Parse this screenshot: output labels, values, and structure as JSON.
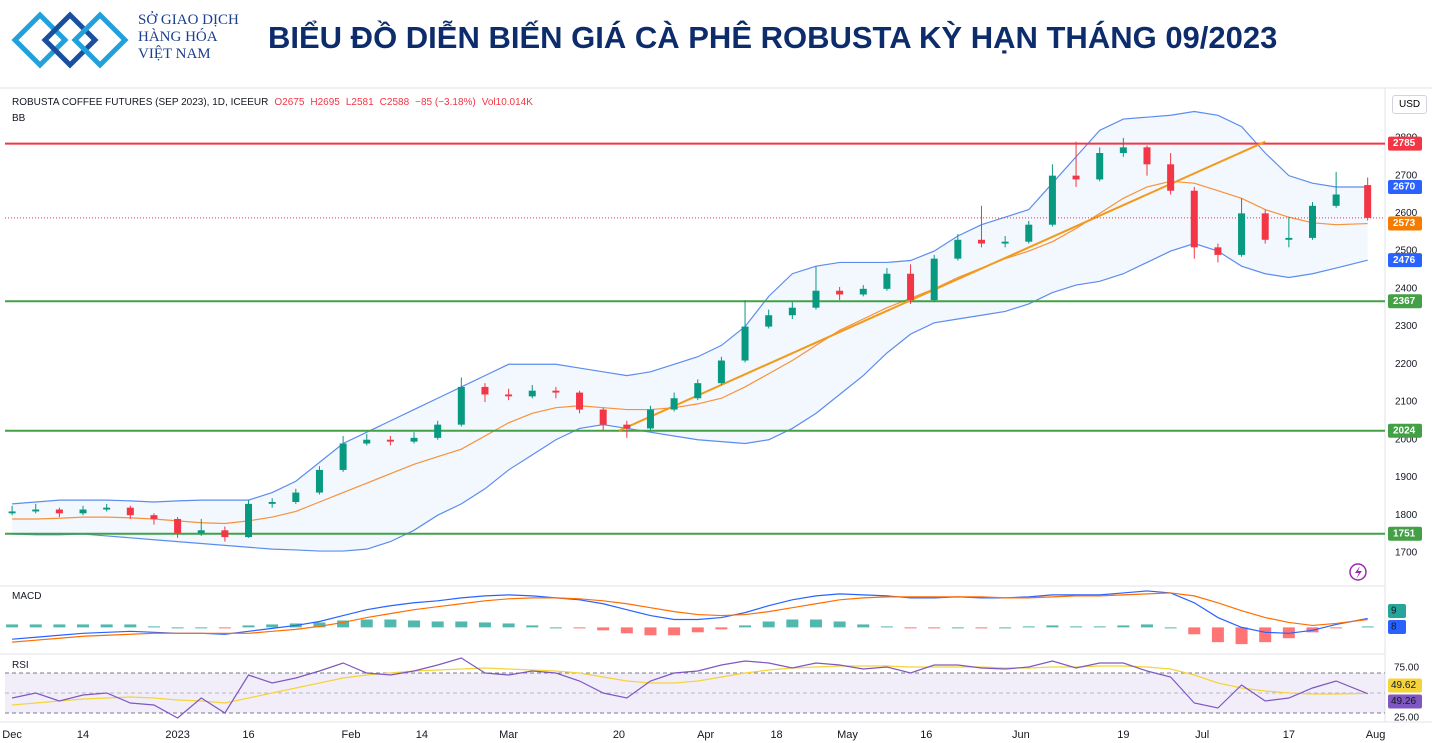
{
  "header": {
    "logo_lines": [
      "SỞ GIAO DỊCH",
      "HÀNG HÓA",
      "VIỆT NAM"
    ],
    "title": "BIỂU ĐỒ DIỄN BIẾN GIÁ CÀ PHÊ ROBUSTA KỲ HẠN THÁNG 09/2023"
  },
  "chart_data": [
    {
      "type": "candlestick",
      "info": [
        "ROBUSTA COFFEE FUTURES (SEP 2023), 1D, ICEEUR",
        "O2675",
        "H2695",
        "L2581",
        "C2588",
        "−85 (−3.18%)",
        "Vol10.014K"
      ],
      "indicator": "BB",
      "currency": "USD",
      "xlim": [
        -0.9,
        174.2
      ],
      "xticks": [
        {
          "value": 0,
          "label": "Dec"
        },
        {
          "value": 9,
          "label": "14"
        },
        {
          "value": 21,
          "label": "2023"
        },
        {
          "value": 30,
          "label": "16"
        },
        {
          "value": 43,
          "label": "Feb"
        },
        {
          "value": 52,
          "label": "14"
        },
        {
          "value": 63,
          "label": "Mar"
        },
        {
          "value": 77,
          "label": "20"
        },
        {
          "value": 88,
          "label": "Apr"
        },
        {
          "value": 97,
          "label": "18"
        },
        {
          "value": 106,
          "label": "May"
        },
        {
          "value": 116,
          "label": "16"
        },
        {
          "value": 128,
          "label": "Jun"
        },
        {
          "value": 141,
          "label": "19"
        },
        {
          "value": 151,
          "label": "Jul"
        },
        {
          "value": 162,
          "label": "17"
        },
        {
          "value": 173,
          "label": "Aug"
        }
      ],
      "ylim": [
        1615,
        2927
      ],
      "yticks": [
        1700,
        1800,
        1900,
        2000,
        2100,
        2200,
        2300,
        2400,
        2500,
        2600,
        2700,
        2800
      ],
      "x": [
        0,
        3,
        6,
        9,
        12,
        15,
        18,
        21,
        24,
        27,
        30,
        33,
        36,
        39,
        42,
        45,
        48,
        51,
        54,
        57,
        60,
        63,
        66,
        69,
        72,
        75,
        78,
        81,
        84,
        87,
        90,
        93,
        96,
        99,
        102,
        105,
        108,
        111,
        114,
        117,
        120,
        123,
        126,
        129,
        132,
        135,
        138,
        141,
        144,
        147,
        150,
        153,
        156,
        159,
        162,
        165,
        168,
        172
      ],
      "open": [
        1805,
        1810,
        1815,
        1805,
        1815,
        1820,
        1800,
        1790,
        1752,
        1760,
        1742,
        1830,
        1835,
        1860,
        1920,
        1990,
        2000,
        1995,
        2005,
        2040,
        2140,
        2120,
        2115,
        2130,
        2125,
        2080,
        2040,
        2030,
        2080,
        2110,
        2150,
        2210,
        2300,
        2330,
        2350,
        2395,
        2385,
        2400,
        2440,
        2370,
        2480,
        2530,
        2520,
        2525,
        2570,
        2700,
        2690,
        2760,
        2775,
        2730,
        2660,
        2510,
        2490,
        2600,
        2530,
        2535,
        2620,
        2675
      ],
      "high": [
        1825,
        1830,
        1820,
        1825,
        1830,
        1825,
        1805,
        1795,
        1790,
        1770,
        1840,
        1845,
        1870,
        1930,
        2010,
        2015,
        2010,
        2020,
        2050,
        2165,
        2150,
        2135,
        2145,
        2140,
        2130,
        2085,
        2050,
        2090,
        2125,
        2160,
        2220,
        2370,
        2345,
        2365,
        2460,
        2405,
        2410,
        2455,
        2465,
        2490,
        2545,
        2620,
        2540,
        2580,
        2730,
        2790,
        2775,
        2800,
        2780,
        2760,
        2670,
        2520,
        2640,
        2610,
        2590,
        2630,
        2710,
        2695
      ],
      "low": [
        1800,
        1805,
        1795,
        1800,
        1810,
        1790,
        1775,
        1740,
        1745,
        1730,
        1740,
        1820,
        1830,
        1855,
        1915,
        1985,
        1985,
        1990,
        2000,
        2035,
        2100,
        2105,
        2110,
        2110,
        2070,
        2025,
        2005,
        2025,
        2075,
        2105,
        2145,
        2205,
        2295,
        2320,
        2345,
        2370,
        2380,
        2395,
        2360,
        2365,
        2475,
        2510,
        2510,
        2520,
        2565,
        2670,
        2685,
        2750,
        2700,
        2650,
        2480,
        2470,
        2485,
        2520,
        2510,
        2530,
        2615,
        2581
      ],
      "close": [
        1810,
        1815,
        1805,
        1815,
        1820,
        1800,
        1790,
        1752,
        1760,
        1742,
        1830,
        1835,
        1860,
        1920,
        1990,
        2000,
        1995,
        2005,
        2040,
        2140,
        2120,
        2115,
        2130,
        2125,
        2080,
        2040,
        2030,
        2080,
        2110,
        2150,
        2210,
        2300,
        2330,
        2350,
        2395,
        2385,
        2400,
        2440,
        2370,
        2480,
        2530,
        2520,
        2525,
        2570,
        2700,
        2690,
        2760,
        2775,
        2730,
        2660,
        2510,
        2490,
        2600,
        2530,
        2535,
        2620,
        2650,
        2588
      ],
      "up_color": "#089981",
      "down_color": "#f23645",
      "bb_upper": [
        1830,
        1835,
        1840,
        1840,
        1840,
        1838,
        1835,
        1838,
        1840,
        1840,
        1840,
        1860,
        1890,
        1940,
        1990,
        2020,
        2050,
        2080,
        2110,
        2140,
        2170,
        2200,
        2200,
        2200,
        2190,
        2180,
        2170,
        2180,
        2200,
        2220,
        2250,
        2300,
        2380,
        2440,
        2460,
        2470,
        2470,
        2470,
        2475,
        2500,
        2540,
        2570,
        2590,
        2610,
        2680,
        2750,
        2820,
        2850,
        2855,
        2860,
        2870,
        2860,
        2830,
        2760,
        2700,
        2680,
        2670,
        2670
      ],
      "bb_middle": [
        1790,
        1790,
        1792,
        1795,
        1795,
        1793,
        1790,
        1785,
        1780,
        1778,
        1785,
        1795,
        1810,
        1835,
        1860,
        1885,
        1910,
        1935,
        1955,
        1975,
        2010,
        2045,
        2070,
        2085,
        2090,
        2085,
        2080,
        2080,
        2085,
        2095,
        2110,
        2140,
        2175,
        2210,
        2250,
        2290,
        2320,
        2350,
        2375,
        2400,
        2430,
        2455,
        2480,
        2500,
        2525,
        2560,
        2600,
        2640,
        2670,
        2685,
        2680,
        2660,
        2640,
        2610,
        2590,
        2575,
        2570,
        2573
      ],
      "bb_lower": [
        1750,
        1748,
        1748,
        1750,
        1745,
        1740,
        1735,
        1730,
        1725,
        1720,
        1715,
        1710,
        1708,
        1705,
        1705,
        1710,
        1730,
        1760,
        1800,
        1830,
        1870,
        1920,
        1960,
        2000,
        2030,
        2040,
        2030,
        2020,
        2010,
        2000,
        1995,
        1990,
        2000,
        2030,
        2070,
        2120,
        2170,
        2230,
        2280,
        2310,
        2320,
        2330,
        2340,
        2360,
        2390,
        2410,
        2420,
        2440,
        2470,
        2500,
        2520,
        2500,
        2460,
        2440,
        2430,
        2440,
        2455,
        2476
      ],
      "bb_band_color": "#5b8def",
      "bb_middle_color": "#f7923a",
      "levels": [
        {
          "value": 2785,
          "color": "#f23645"
        },
        {
          "value": 2367,
          "color": "#43a047"
        },
        {
          "value": 2024,
          "color": "#43a047"
        },
        {
          "value": 1751,
          "color": "#43a047"
        }
      ],
      "trendline": {
        "x": [
          77,
          159
        ],
        "y": [
          2024,
          2790
        ],
        "color": "#f29a1a"
      },
      "price_labels": [
        {
          "value": 2785,
          "color": "#f23645"
        },
        {
          "value": 2670,
          "color": "#2962ff"
        },
        {
          "value": 2573,
          "color": "#f57c00"
        },
        {
          "value": 2476,
          "color": "#2962ff"
        },
        {
          "value": 2367,
          "color": "#43a047"
        },
        {
          "value": 2024,
          "color": "#43a047"
        },
        {
          "value": 1751,
          "color": "#43a047"
        }
      ]
    },
    {
      "type": "macd",
      "label": "MACD",
      "ylim": [
        -25,
        40
      ],
      "macd": [
        -12,
        -10,
        -8,
        -6,
        -5,
        -4,
        -5,
        -6,
        -6,
        -7,
        -4,
        -1,
        2,
        6,
        12,
        18,
        22,
        25,
        27,
        30,
        32,
        33,
        32,
        30,
        28,
        24,
        18,
        12,
        8,
        8,
        10,
        15,
        22,
        28,
        32,
        34,
        33,
        32,
        30,
        30,
        31,
        30,
        30,
        31,
        33,
        33,
        33,
        35,
        37,
        35,
        25,
        10,
        0,
        -5,
        -6,
        -3,
        3,
        9
      ],
      "signal": [
        -15,
        -13,
        -11,
        -9,
        -8,
        -7,
        -6,
        -6,
        -6,
        -6,
        -6,
        -4,
        -2,
        1,
        5,
        10,
        14,
        18,
        21,
        24,
        27,
        29,
        30,
        30,
        29,
        27,
        24,
        20,
        16,
        13,
        12,
        13,
        16,
        20,
        24,
        28,
        30,
        31,
        31,
        31,
        31,
        31,
        30,
        30,
        31,
        32,
        32,
        33,
        34,
        35,
        32,
        25,
        17,
        10,
        5,
        2,
        4,
        8
      ],
      "histogram": [
        3,
        3,
        3,
        3,
        3,
        3,
        1,
        0,
        0,
        -1,
        2,
        3,
        4,
        5,
        7,
        8,
        8,
        7,
        6,
        6,
        5,
        4,
        2,
        0,
        -1,
        -3,
        -6,
        -8,
        -8,
        -5,
        -2,
        2,
        6,
        8,
        8,
        6,
        3,
        1,
        -1,
        -1,
        0,
        -1,
        0,
        1,
        2,
        1,
        1,
        2,
        3,
        0,
        -7,
        -15,
        -17,
        -15,
        -11,
        -5,
        -1,
        1
      ],
      "macd_color": "#2962ff",
      "signal_color": "#ff6d00",
      "hist_up_color": "#26a69a",
      "hist_down_color": "#ff5252",
      "last_labels": [
        {
          "value": 9,
          "color": "#26a69a"
        },
        {
          "value": 8,
          "color": "#2962ff"
        }
      ]
    },
    {
      "type": "rsi",
      "label": "RSI",
      "ylim": [
        23,
        87
      ],
      "yticks": [
        {
          "value": 75,
          "label": "75.00"
        },
        {
          "value": 25,
          "label": "25.00"
        }
      ],
      "band": [
        30,
        70
      ],
      "midline": 50,
      "rsi": [
        45,
        50,
        42,
        48,
        50,
        40,
        38,
        25,
        45,
        30,
        68,
        60,
        65,
        72,
        80,
        70,
        68,
        72,
        78,
        85,
        70,
        68,
        72,
        70,
        62,
        50,
        45,
        62,
        70,
        72,
        78,
        82,
        80,
        75,
        80,
        78,
        74,
        76,
        70,
        78,
        78,
        75,
        74,
        76,
        82,
        75,
        80,
        80,
        72,
        66,
        40,
        35,
        58,
        42,
        45,
        55,
        62,
        49.26
      ],
      "rsi_ma": [
        38,
        40,
        42,
        44,
        45,
        46,
        45,
        43,
        42,
        40,
        45,
        50,
        55,
        60,
        65,
        68,
        70,
        72,
        73,
        74,
        75,
        74,
        73,
        72,
        70,
        66,
        62,
        60,
        60,
        62,
        66,
        70,
        73,
        75,
        76,
        77,
        77,
        77,
        76,
        76,
        76,
        76,
        75,
        75,
        76,
        76,
        77,
        77,
        76,
        74,
        68,
        60,
        55,
        52,
        50,
        49,
        49,
        49.62
      ],
      "rsi_color": "#7e57c2",
      "ma_color": "#f5d33b",
      "last_labels": [
        {
          "value": 49.62,
          "color": "#f5d33b"
        },
        {
          "value": 49.26,
          "color": "#7e57c2"
        }
      ]
    }
  ]
}
